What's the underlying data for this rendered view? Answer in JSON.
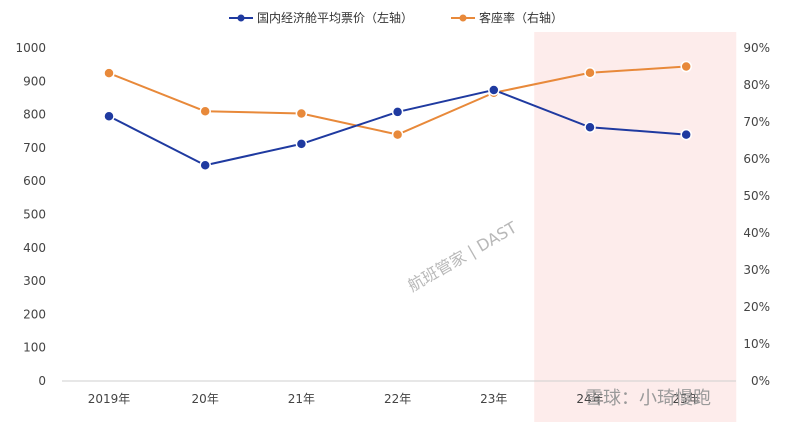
{
  "chart_data": {
    "type": "line",
    "categories": [
      "2019年",
      "20年",
      "21年",
      "22年",
      "23年",
      "24年",
      "25年"
    ],
    "series": [
      {
        "name": "国内经济舱平均票价（左轴）",
        "axis": "left",
        "color": "#1f3aa0",
        "values": [
          795,
          648,
          712,
          808,
          874,
          762,
          740
        ]
      },
      {
        "name": "客座率（右轴）",
        "axis": "right",
        "color": "#e8893a",
        "values": [
          83.2,
          72.9,
          72.3,
          66.6,
          77.9,
          83.3,
          85.0
        ]
      }
    ],
    "ylim_left": [
      0,
      1000
    ],
    "yticks_left": [
      "0",
      "100",
      "200",
      "300",
      "400",
      "500",
      "600",
      "700",
      "800",
      "900",
      "1000"
    ],
    "ylim_right": [
      0,
      90
    ],
    "yticks_right": [
      "0%",
      "10%",
      "20%",
      "30%",
      "40%",
      "50%",
      "60%",
      "70%",
      "80%",
      "90%"
    ],
    "highlight_categories": [
      "24年",
      "25年"
    ],
    "highlight_color": "#fdeceb",
    "legend_position": "top-center",
    "grid": false,
    "watermark": "航班管家 | DAST",
    "watermark2": "雪球：小琦慢跑"
  }
}
